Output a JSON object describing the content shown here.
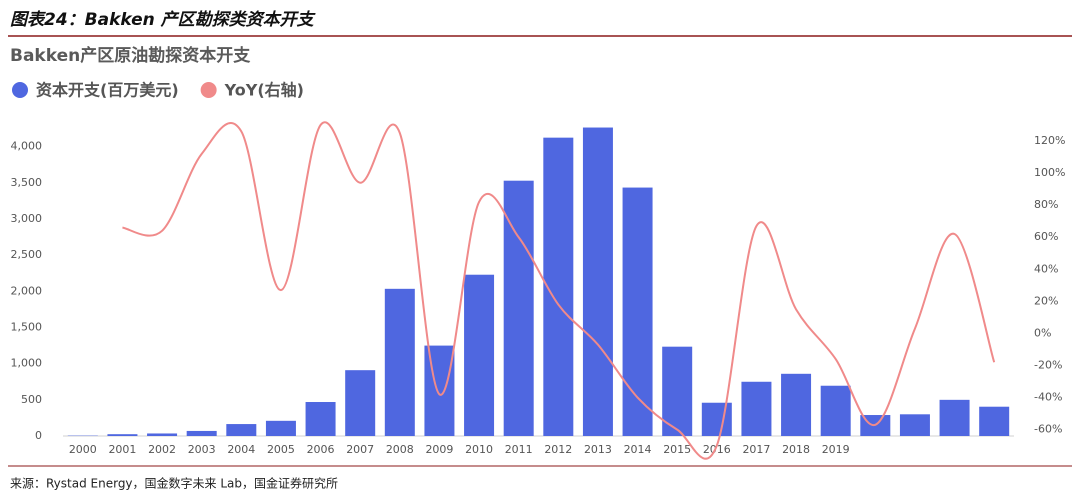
{
  "chart_data": {
    "type": "bar_line",
    "figure_label": "图表24：Bakken 产区勘探类资本开支",
    "title": "Bakken产区原油勘探资本开支",
    "source": "来源：Rystad Energy，国金数字未来 Lab，国金证券研究所",
    "categories": [
      "2000",
      "2001",
      "2002",
      "2003",
      "2004",
      "2005",
      "2006",
      "2007",
      "2008",
      "2009",
      "2010",
      "2011",
      "2012",
      "2013",
      "2014",
      "2015",
      "2016",
      "2017",
      "2018",
      "2019",
      null,
      null,
      null,
      null
    ],
    "series": [
      {
        "name": "资本开支(百万美元)",
        "color": "#4f67e0",
        "type": "bar",
        "values": [
          5,
          25,
          35,
          70,
          165,
          210,
          470,
          910,
          2035,
          1250,
          2230,
          3530,
          4125,
          4265,
          3435,
          1235,
          460,
          750,
          860,
          695,
          290,
          300,
          500,
          405
        ]
      },
      {
        "name": "YoY(右轴)",
        "color": "#f08a8a",
        "type": "line",
        "axis": "y2",
        "values": [
          null,
          66,
          64,
          112,
          126,
          27,
          130,
          94,
          125,
          -38,
          82,
          60,
          18,
          -7,
          -40,
          -60,
          -70,
          67,
          15,
          -16,
          -57,
          3,
          62,
          -18
        ]
      }
    ],
    "ylim": [
      0,
      4300
    ],
    "yticks": [
      0,
      {
        "value": 500,
        "label": "500"
      },
      {
        "value": 1000,
        "label": "1,000"
      },
      {
        "value": 1500,
        "label": "1,500"
      },
      {
        "value": 2000,
        "label": "2,000"
      },
      {
        "value": 2500,
        "label": "2,500"
      },
      {
        "value": 3000,
        "label": "3,000"
      },
      {
        "value": 3500,
        "label": "3,500"
      },
      {
        "value": 4000,
        "label": "4,000"
      }
    ],
    "y2lim": [
      -64,
      130
    ],
    "y2ticks": [
      {
        "value": -60,
        "label": "-60%"
      },
      {
        "value": -40,
        "label": "-40%"
      },
      {
        "value": -20,
        "label": "-20%"
      },
      {
        "value": 0,
        "label": "0%"
      },
      {
        "value": 20,
        "label": "20%"
      },
      {
        "value": 40,
        "label": "40%"
      },
      {
        "value": 60,
        "label": "60%"
      },
      {
        "value": 80,
        "label": "80%"
      },
      {
        "value": 100,
        "label": "100%"
      },
      {
        "value": 120,
        "label": "120%"
      }
    ],
    "grid": false,
    "legend": "top-left"
  }
}
